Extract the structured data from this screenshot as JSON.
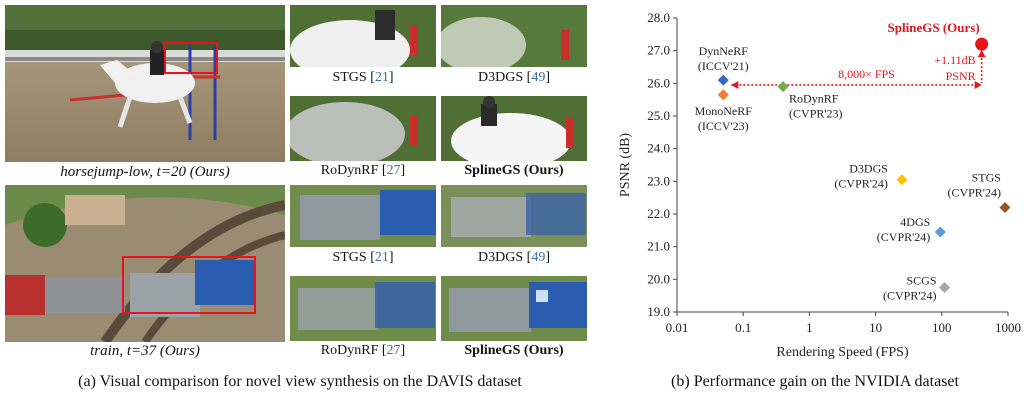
{
  "panel_a": {
    "row1": {
      "main_caption": "horsejump-low, t=20 (Ours)",
      "thumbs": [
        {
          "name": "STGS",
          "ref": "21",
          "bold": false
        },
        {
          "name": "D3DGS",
          "ref": "49",
          "bold": false
        },
        {
          "name": "RoDynRF",
          "ref": "27",
          "bold": false
        },
        {
          "name": "SplineGS (Ours)",
          "ref": "",
          "bold": true
        }
      ]
    },
    "row2": {
      "main_caption": "train, t=37 (Ours)",
      "thumbs": [
        {
          "name": "STGS",
          "ref": "21",
          "bold": false
        },
        {
          "name": "D3DGS",
          "ref": "49",
          "bold": false
        },
        {
          "name": "RoDynRF",
          "ref": "27",
          "bold": false
        },
        {
          "name": "SplineGS (Ours)",
          "ref": "",
          "bold": true
        }
      ]
    },
    "caption": "(a) Visual comparison for novel view synthesis on the DAVIS dataset"
  },
  "panel_b": {
    "caption": "(b) Performance gain on the NVIDIA dataset"
  },
  "colors": {
    "ours": "#e8141c",
    "dynnerf": "#3a66c4",
    "mononerf": "#ed7d31",
    "rodynrf": "#70ad47",
    "d3dgs": "#ffc000",
    "stgs": "#a0522d",
    "4dgs": "#5b9bd5",
    "scgs": "#a5a5a5"
  },
  "chart_data": {
    "type": "scatter",
    "xlabel": "Rendering Speed (FPS)",
    "ylabel": "PSNR (dB)",
    "xscale": "log",
    "xlim": [
      0.01,
      1000
    ],
    "ylim": [
      19.0,
      28.0
    ],
    "xticks": [
      "0.01",
      "0.1",
      "1",
      "10",
      "100",
      "1000"
    ],
    "yticks": [
      "19.0",
      "20.0",
      "21.0",
      "22.0",
      "23.0",
      "24.0",
      "25.0",
      "26.0",
      "27.0",
      "28.0"
    ],
    "grid": false,
    "points": [
      {
        "name": "SplineGS (Ours)",
        "x": 400,
        "y": 27.2,
        "color": "#e8141c",
        "marker": "circle",
        "label_lines": [
          "SplineGS (Ours)"
        ],
        "label_pos": "above-left",
        "bold": true
      },
      {
        "name": "DynNeRF",
        "x": 0.05,
        "y": 26.1,
        "color": "#3a66c4",
        "marker": "diamond",
        "label_lines": [
          "DynNeRF",
          "(ICCV'21)"
        ],
        "label_pos": "above"
      },
      {
        "name": "MonoNeRF",
        "x": 0.05,
        "y": 25.65,
        "color": "#ed7d31",
        "marker": "diamond",
        "label_lines": [
          "MonoNeRF",
          "(ICCV'23)"
        ],
        "label_pos": "below"
      },
      {
        "name": "RoDynRF",
        "x": 0.4,
        "y": 25.9,
        "color": "#70ad47",
        "marker": "diamond",
        "label_lines": [
          "RoDynRF",
          "(CVPR'23)"
        ],
        "label_pos": "below-right"
      },
      {
        "name": "D3DGS",
        "x": 25,
        "y": 23.05,
        "color": "#ffc000",
        "marker": "diamond",
        "label_lines": [
          "D3DGS",
          "(CVPR'24)"
        ],
        "label_pos": "left"
      },
      {
        "name": "STGS",
        "x": 900,
        "y": 22.2,
        "color": "#a0522d",
        "marker": "diamond",
        "label_lines": [
          "STGS",
          "(CVPR'24)"
        ],
        "label_pos": "above-left"
      },
      {
        "name": "4DGS",
        "x": 95,
        "y": 21.45,
        "color": "#5b9bd5",
        "marker": "diamond",
        "label_lines": [
          "4DGS",
          "(CVPR'24)"
        ],
        "label_pos": "left"
      },
      {
        "name": "SCGS",
        "x": 110,
        "y": 19.75,
        "color": "#a5a5a5",
        "marker": "diamond",
        "label_lines": [
          "SCGS",
          "(CVPR'24)"
        ],
        "label_pos": "left"
      }
    ],
    "annotations": {
      "speedup": "8,000× FPS",
      "gain_lines": [
        "+1.11dB",
        "PSNR"
      ]
    }
  }
}
